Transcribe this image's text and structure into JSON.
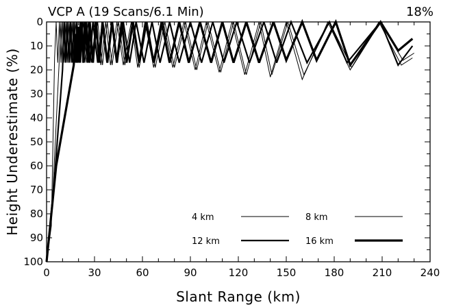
{
  "chart_data": {
    "type": "line",
    "title": "VCP A (19 Scans/6.1 Min)",
    "title_right": "18%",
    "xlabel": "Slant Range (km)",
    "ylabel": "Height Underestimate (%)",
    "xlim": [
      0,
      240
    ],
    "ylim": [
      0,
      100
    ],
    "y_inverted": true,
    "x_ticks": [
      0,
      30,
      60,
      90,
      120,
      150,
      180,
      210,
      240
    ],
    "y_ticks": [
      0,
      10,
      20,
      30,
      40,
      50,
      60,
      70,
      80,
      90,
      100
    ],
    "grid": false,
    "legend": {
      "placement": "bottom-right",
      "entries": [
        {
          "label": "4 km",
          "weight": "thin"
        },
        {
          "label": "8 km",
          "weight": "thin"
        },
        {
          "label": "12 km",
          "weight": "medium"
        },
        {
          "label": "16 km",
          "weight": "thick"
        }
      ]
    },
    "series": [
      {
        "name": "4 km",
        "points": [
          [
            0,
            100
          ],
          [
            3,
            85
          ],
          [
            5,
            15
          ],
          [
            6,
            0
          ],
          [
            7,
            17
          ],
          [
            8,
            0
          ],
          [
            9,
            17
          ],
          [
            10,
            0
          ],
          [
            11,
            17
          ],
          [
            12,
            0
          ],
          [
            13,
            17
          ],
          [
            14,
            0
          ],
          [
            15,
            17
          ],
          [
            16,
            0
          ],
          [
            17,
            17
          ],
          [
            18,
            0
          ],
          [
            20,
            17
          ],
          [
            22,
            0
          ],
          [
            24,
            17
          ],
          [
            26,
            0
          ],
          [
            28,
            17
          ],
          [
            31,
            0
          ],
          [
            34,
            18
          ],
          [
            37,
            0
          ],
          [
            40,
            18
          ],
          [
            44,
            0
          ],
          [
            48,
            18
          ],
          [
            53,
            0
          ],
          [
            57,
            19
          ],
          [
            62,
            0
          ],
          [
            67,
            19
          ],
          [
            73,
            0
          ],
          [
            79,
            19
          ],
          [
            86,
            0
          ],
          [
            93,
            20
          ],
          [
            100,
            0
          ],
          [
            108,
            21
          ],
          [
            116,
            0
          ],
          [
            124,
            22
          ],
          [
            133,
            0
          ],
          [
            140,
            23
          ],
          [
            150,
            0
          ],
          [
            160,
            24
          ],
          [
            176,
            0
          ],
          [
            190,
            20
          ],
          [
            208,
            0
          ],
          [
            222,
            18
          ],
          [
            229,
            15
          ]
        ]
      },
      {
        "name": "8 km",
        "points": [
          [
            0,
            100
          ],
          [
            4,
            70
          ],
          [
            8,
            15
          ],
          [
            9,
            0
          ],
          [
            10,
            17
          ],
          [
            11,
            0
          ],
          [
            12,
            17
          ],
          [
            13,
            0
          ],
          [
            14,
            17
          ],
          [
            15,
            0
          ],
          [
            16,
            17
          ],
          [
            17,
            0
          ],
          [
            18,
            17
          ],
          [
            19,
            0
          ],
          [
            21,
            17
          ],
          [
            23,
            0
          ],
          [
            25,
            17
          ],
          [
            27,
            0
          ],
          [
            29,
            17
          ],
          [
            32,
            0
          ],
          [
            35,
            18
          ],
          [
            38,
            0
          ],
          [
            41,
            18
          ],
          [
            45,
            0
          ],
          [
            49,
            18
          ],
          [
            54,
            0
          ],
          [
            58,
            19
          ],
          [
            63,
            0
          ],
          [
            68,
            19
          ],
          [
            74,
            0
          ],
          [
            80,
            19
          ],
          [
            87,
            0
          ],
          [
            94,
            20
          ],
          [
            101,
            0
          ],
          [
            109,
            21
          ],
          [
            117,
            0
          ],
          [
            125,
            22
          ],
          [
            134,
            0
          ],
          [
            141,
            22
          ],
          [
            151,
            0
          ],
          [
            161,
            22
          ],
          [
            177,
            0
          ],
          [
            191,
            19
          ],
          [
            209,
            0
          ],
          [
            223,
            16
          ],
          [
            230,
            13
          ]
        ]
      },
      {
        "name": "12 km",
        "points": [
          [
            0,
            100
          ],
          [
            5,
            65
          ],
          [
            10,
            20
          ],
          [
            11,
            0
          ],
          [
            12,
            17
          ],
          [
            13,
            0
          ],
          [
            14,
            17
          ],
          [
            15,
            0
          ],
          [
            16,
            17
          ],
          [
            17,
            0
          ],
          [
            18,
            17
          ],
          [
            19,
            0
          ],
          [
            20,
            17
          ],
          [
            21,
            0
          ],
          [
            23,
            17
          ],
          [
            25,
            0
          ],
          [
            27,
            17
          ],
          [
            29,
            0
          ],
          [
            32,
            17
          ],
          [
            35,
            0
          ],
          [
            38,
            17
          ],
          [
            41,
            0
          ],
          [
            44,
            17
          ],
          [
            48,
            0
          ],
          [
            52,
            17
          ],
          [
            56,
            0
          ],
          [
            61,
            17
          ],
          [
            66,
            0
          ],
          [
            71,
            17
          ],
          [
            77,
            0
          ],
          [
            83,
            17
          ],
          [
            90,
            0
          ],
          [
            97,
            17
          ],
          [
            104,
            0
          ],
          [
            111,
            17
          ],
          [
            119,
            0
          ],
          [
            127,
            17
          ],
          [
            136,
            0
          ],
          [
            144,
            17
          ],
          [
            153,
            0
          ],
          [
            163,
            17
          ],
          [
            177,
            0
          ],
          [
            188,
            17
          ],
          [
            209,
            0
          ],
          [
            220,
            18
          ],
          [
            229,
            10
          ]
        ]
      },
      {
        "name": "16 km",
        "points": [
          [
            0,
            100
          ],
          [
            6,
            60
          ],
          [
            17,
            18
          ],
          [
            18,
            5
          ],
          [
            19,
            17
          ],
          [
            20,
            2
          ],
          [
            21,
            17
          ],
          [
            22,
            0
          ],
          [
            23,
            17
          ],
          [
            24,
            0
          ],
          [
            26,
            17
          ],
          [
            27,
            0
          ],
          [
            29,
            17
          ],
          [
            31,
            0
          ],
          [
            33,
            17
          ],
          [
            35,
            0
          ],
          [
            38,
            17
          ],
          [
            41,
            0
          ],
          [
            44,
            17
          ],
          [
            47,
            0
          ],
          [
            50,
            17
          ],
          [
            54,
            0
          ],
          [
            58,
            17
          ],
          [
            62,
            0
          ],
          [
            67,
            17
          ],
          [
            72,
            0
          ],
          [
            77,
            17
          ],
          [
            83,
            0
          ],
          [
            89,
            17
          ],
          [
            96,
            0
          ],
          [
            103,
            17
          ],
          [
            110,
            0
          ],
          [
            117,
            17
          ],
          [
            125,
            0
          ],
          [
            133,
            17
          ],
          [
            142,
            0
          ],
          [
            150,
            16
          ],
          [
            160,
            0
          ],
          [
            169,
            16
          ],
          [
            181,
            0
          ],
          [
            190,
            18
          ],
          [
            209,
            0
          ],
          [
            220,
            12
          ],
          [
            229,
            7
          ]
        ]
      }
    ]
  }
}
